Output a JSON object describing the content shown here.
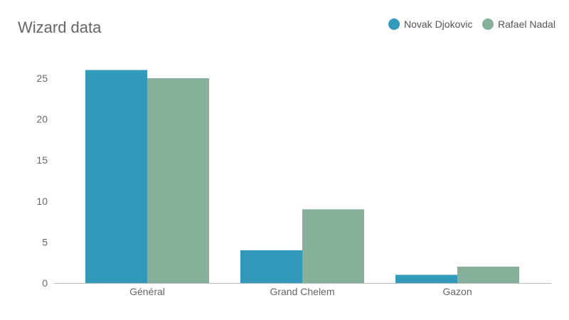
{
  "chart_data": {
    "type": "bar",
    "title": "Wizard data",
    "categories": [
      "Général",
      "Grand Chelem",
      "Gazon"
    ],
    "series": [
      {
        "name": "Novak Djokovic",
        "values": [
          26,
          4,
          1
        ],
        "color": "#3399bb"
      },
      {
        "name": "Rafael Nadal",
        "values": [
          25,
          9,
          2
        ],
        "color": "#87b09a"
      }
    ],
    "yticks": [
      0,
      5,
      10,
      15,
      20,
      25
    ],
    "ylim": [
      0,
      27.5
    ],
    "grid": false,
    "legend": "top-right",
    "xlabel": "",
    "ylabel": ""
  }
}
